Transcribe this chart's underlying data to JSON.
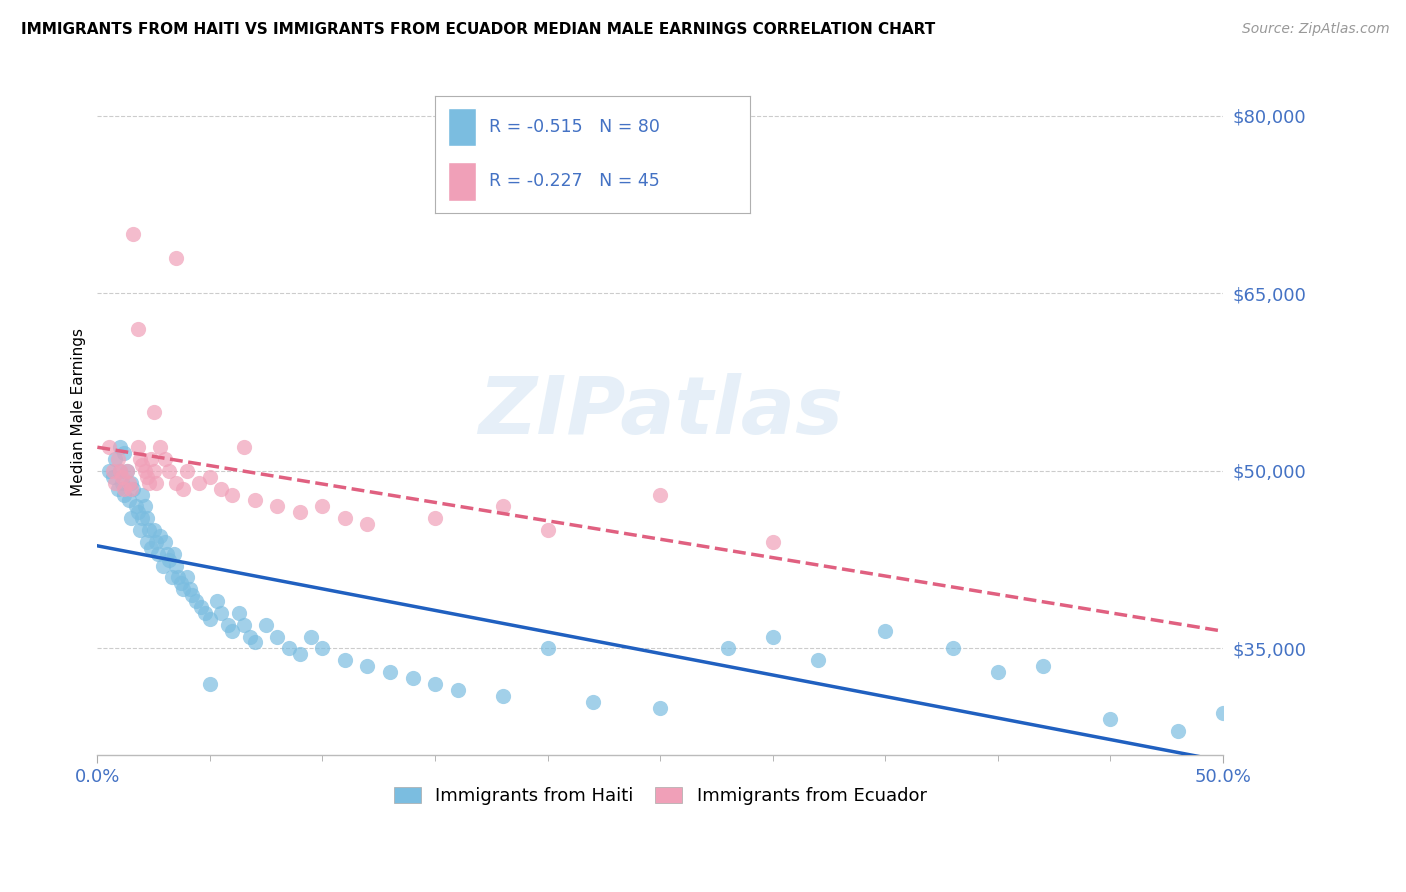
{
  "title": "IMMIGRANTS FROM HAITI VS IMMIGRANTS FROM ECUADOR MEDIAN MALE EARNINGS CORRELATION CHART",
  "source": "Source: ZipAtlas.com",
  "ylabel": "Median Male Earnings",
  "yticks": [
    35000,
    50000,
    65000,
    80000
  ],
  "ytick_labels": [
    "$35,000",
    "$50,000",
    "$65,000",
    "$80,000"
  ],
  "xlim": [
    0.0,
    0.5
  ],
  "ylim": [
    26000,
    84000
  ],
  "haiti_color": "#7bbde0",
  "ecuador_color": "#f0a0b8",
  "haiti_line_color": "#2060c0",
  "ecuador_line_color": "#e06080",
  "legend_R_haiti": "R = -0.515",
  "legend_N_haiti": "N = 80",
  "legend_R_ecuador": "R = -0.227",
  "legend_N_ecuador": "N = 45",
  "haiti_label": "Immigrants from Haiti",
  "ecuador_label": "Immigrants from Ecuador",
  "watermark": "ZIPatlas",
  "haiti_x": [
    0.005,
    0.007,
    0.008,
    0.009,
    0.01,
    0.01,
    0.011,
    0.012,
    0.012,
    0.013,
    0.014,
    0.015,
    0.015,
    0.016,
    0.017,
    0.018,
    0.019,
    0.02,
    0.02,
    0.021,
    0.022,
    0.022,
    0.023,
    0.024,
    0.025,
    0.026,
    0.027,
    0.028,
    0.029,
    0.03,
    0.031,
    0.032,
    0.033,
    0.034,
    0.035,
    0.036,
    0.037,
    0.038,
    0.04,
    0.041,
    0.042,
    0.044,
    0.046,
    0.048,
    0.05,
    0.053,
    0.055,
    0.058,
    0.06,
    0.063,
    0.065,
    0.068,
    0.07,
    0.075,
    0.08,
    0.085,
    0.09,
    0.095,
    0.1,
    0.11,
    0.12,
    0.13,
    0.14,
    0.15,
    0.16,
    0.18,
    0.2,
    0.22,
    0.25,
    0.28,
    0.3,
    0.32,
    0.35,
    0.38,
    0.4,
    0.42,
    0.45,
    0.48,
    0.5,
    0.05
  ],
  "haiti_y": [
    50000,
    49500,
    51000,
    48500,
    52000,
    50000,
    49000,
    51500,
    48000,
    50000,
    47500,
    49000,
    46000,
    48500,
    47000,
    46500,
    45000,
    48000,
    46000,
    47000,
    44000,
    46000,
    45000,
    43500,
    45000,
    44000,
    43000,
    44500,
    42000,
    44000,
    43000,
    42500,
    41000,
    43000,
    42000,
    41000,
    40500,
    40000,
    41000,
    40000,
    39500,
    39000,
    38500,
    38000,
    37500,
    39000,
    38000,
    37000,
    36500,
    38000,
    37000,
    36000,
    35500,
    37000,
    36000,
    35000,
    34500,
    36000,
    35000,
    34000,
    33500,
    33000,
    32500,
    32000,
    31500,
    31000,
    35000,
    30500,
    30000,
    35000,
    36000,
    34000,
    36500,
    35000,
    33000,
    33500,
    29000,
    28000,
    29500,
    32000
  ],
  "ecuador_x": [
    0.005,
    0.007,
    0.008,
    0.009,
    0.01,
    0.011,
    0.012,
    0.013,
    0.014,
    0.015,
    0.016,
    0.018,
    0.019,
    0.02,
    0.021,
    0.022,
    0.023,
    0.024,
    0.025,
    0.026,
    0.028,
    0.03,
    0.032,
    0.035,
    0.038,
    0.04,
    0.045,
    0.05,
    0.055,
    0.06,
    0.07,
    0.08,
    0.09,
    0.1,
    0.11,
    0.12,
    0.15,
    0.18,
    0.2,
    0.25,
    0.3,
    0.035,
    0.065,
    0.025,
    0.018
  ],
  "ecuador_y": [
    52000,
    50000,
    49000,
    51000,
    50000,
    49500,
    48500,
    50000,
    49000,
    48500,
    70000,
    52000,
    51000,
    50500,
    50000,
    49500,
    49000,
    51000,
    50000,
    49000,
    52000,
    51000,
    50000,
    49000,
    48500,
    50000,
    49000,
    49500,
    48500,
    48000,
    47500,
    47000,
    46500,
    47000,
    46000,
    45500,
    46000,
    47000,
    45000,
    48000,
    44000,
    68000,
    52000,
    55000,
    62000
  ]
}
